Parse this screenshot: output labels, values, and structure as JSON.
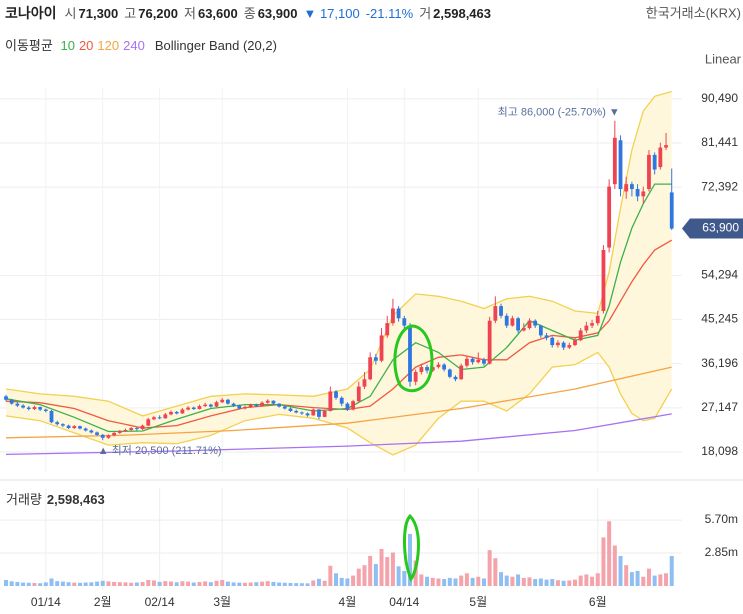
{
  "quote": {
    "name": "코나아이",
    "items": [
      {
        "label": "시",
        "value": "71,300"
      },
      {
        "label": "고",
        "value": "76,200"
      },
      {
        "label": "저",
        "value": "63,600"
      },
      {
        "label": "종",
        "value": "63,900"
      }
    ],
    "change": "▼ 17,100",
    "change_pct": "-21.11%",
    "volume_label": "거",
    "volume": "2,598,463",
    "exchange": "한국거래소(KRX)"
  },
  "chart_data": {
    "type": "candlestick",
    "scale": "Linear",
    "legend": {
      "title": "이동평균"
    },
    "categories": [
      null,
      null,
      null,
      null,
      null,
      null,
      null,
      "01/14",
      null,
      null,
      null,
      null,
      null,
      null,
      null,
      null,
      null,
      "2월",
      null,
      null,
      null,
      null,
      null,
      null,
      null,
      null,
      null,
      "02/14",
      null,
      null,
      null,
      null,
      null,
      null,
      null,
      null,
      null,
      null,
      "3월",
      null,
      null,
      null,
      null,
      null,
      null,
      null,
      null,
      null,
      null,
      null,
      null,
      null,
      null,
      null,
      null,
      null,
      null,
      null,
      null,
      null,
      "4월",
      null,
      null,
      null,
      null,
      null,
      null,
      null,
      null,
      null,
      "04/14",
      null,
      null,
      null,
      null,
      null,
      null,
      null,
      null,
      null,
      null,
      null,
      null,
      "5월",
      null,
      null,
      null,
      null,
      null,
      null,
      null,
      null,
      null,
      null,
      null,
      null,
      null,
      null,
      null,
      null,
      null,
      null,
      null,
      null,
      "6월",
      null,
      null,
      null,
      null,
      null,
      null,
      null,
      null,
      null,
      null,
      null,
      null,
      null
    ],
    "open": [
      29500,
      28800,
      28000,
      27600,
      27200,
      26900,
      27300,
      26800,
      26500,
      24200,
      23800,
      23500,
      23000,
      23400,
      22900,
      22500,
      22100,
      21600,
      21000,
      21500,
      22000,
      22400,
      22600,
      23000,
      22800,
      23500,
      24800,
      25200,
      25000,
      25800,
      26300,
      26000,
      26800,
      27200,
      26900,
      27500,
      27800,
      27400,
      28300,
      28800,
      28000,
      27600,
      27000,
      27300,
      27800,
      27500,
      28200,
      28600,
      28000,
      27400,
      27000,
      26500,
      26200,
      26000,
      25600,
      26800,
      25300,
      26500,
      30500,
      29200,
      28000,
      26800,
      28500,
      31500,
      33000,
      37500,
      36800,
      42000,
      44500,
      47500,
      45500,
      44000,
      32500,
      34500,
      35500,
      34800,
      35500,
      36000,
      35000,
      33500,
      33000,
      35800,
      37200,
      36500,
      37000,
      36200,
      45000,
      48000,
      46000,
      44000,
      45500,
      43000,
      43500,
      45000,
      44000,
      42000,
      41500,
      40000,
      40500,
      39500,
      40000,
      41000,
      43000,
      44000,
      44500,
      47000,
      60000,
      73000,
      82000,
      71500,
      73000,
      72000,
      70500,
      72000,
      79000,
      76500,
      80500,
      71300
    ],
    "high": [
      29800,
      29000,
      28300,
      27900,
      27500,
      27600,
      27400,
      27000,
      26700,
      24500,
      24000,
      23700,
      23600,
      23500,
      23100,
      22700,
      22300,
      21800,
      21700,
      22200,
      22600,
      22900,
      23200,
      23200,
      23700,
      25100,
      25500,
      25600,
      26100,
      26600,
      26500,
      27100,
      27500,
      27400,
      27800,
      28200,
      28000,
      28600,
      29200,
      29000,
      28200,
      27800,
      27600,
      28000,
      28000,
      28500,
      28900,
      28700,
      28100,
      27600,
      27200,
      26800,
      26400,
      26200,
      27000,
      26900,
      26800,
      31500,
      30800,
      29500,
      28300,
      28800,
      32500,
      34500,
      38500,
      38200,
      43500,
      46000,
      49500,
      48000,
      46000,
      44500,
      35000,
      36200,
      36000,
      36000,
      36500,
      36300,
      35200,
      33800,
      36200,
      37800,
      37500,
      38500,
      37400,
      45800,
      50000,
      48500,
      46500,
      46000,
      45800,
      44500,
      45500,
      45300,
      44200,
      42500,
      41800,
      41000,
      40800,
      40500,
      41500,
      43500,
      44800,
      45200,
      47000,
      60500,
      74000,
      86000,
      83000,
      74500,
      73500,
      73000,
      72500,
      80000,
      79500,
      81500,
      83500,
      76200
    ],
    "low": [
      28500,
      27800,
      27300,
      27000,
      26600,
      26700,
      26500,
      26200,
      24000,
      23500,
      23200,
      22800,
      22800,
      22700,
      22300,
      21900,
      21400,
      20500,
      20800,
      21300,
      21800,
      22200,
      22400,
      22500,
      22600,
      23400,
      24600,
      24800,
      24900,
      25600,
      25800,
      25900,
      26600,
      26700,
      26800,
      27300,
      27200,
      27300,
      28100,
      27800,
      27300,
      26800,
      26800,
      27100,
      27300,
      27400,
      28000,
      27800,
      27200,
      26800,
      26300,
      26000,
      25700,
      25300,
      25500,
      24800,
      25200,
      26400,
      28800,
      27500,
      26500,
      26600,
      28300,
      31000,
      32800,
      36000,
      36500,
      41500,
      44000,
      44800,
      43200,
      31500,
      31800,
      34000,
      34200,
      34500,
      35200,
      34600,
      33200,
      32600,
      32900,
      35400,
      36000,
      36200,
      35800,
      36000,
      44500,
      45500,
      43500,
      43800,
      42500,
      42800,
      43200,
      43500,
      41500,
      41000,
      39500,
      39500,
      39000,
      39200,
      39800,
      40800,
      42500,
      43500,
      44000,
      46500,
      59000,
      72000,
      70500,
      70000,
      70500,
      69500,
      69000,
      71500,
      75000,
      76000,
      80000,
      63600
    ],
    "close": [
      28800,
      28000,
      27600,
      27200,
      26900,
      27300,
      26800,
      26500,
      24200,
      23800,
      23500,
      23000,
      23400,
      22900,
      22500,
      22100,
      21600,
      21000,
      21500,
      22000,
      22400,
      22600,
      23000,
      22800,
      23500,
      24800,
      25200,
      25000,
      25800,
      26300,
      26000,
      26800,
      27200,
      26900,
      27500,
      27800,
      27400,
      28300,
      28800,
      28000,
      27600,
      27000,
      27300,
      27800,
      27500,
      28200,
      28600,
      28000,
      27400,
      27000,
      26500,
      26200,
      26000,
      25600,
      26800,
      25300,
      26500,
      30500,
      29200,
      28000,
      26800,
      28500,
      31500,
      33000,
      37500,
      36800,
      42000,
      44500,
      47500,
      45500,
      44000,
      32500,
      34500,
      35500,
      34800,
      35500,
      36000,
      35000,
      33500,
      33000,
      35800,
      37200,
      36500,
      37000,
      36200,
      45000,
      48000,
      46000,
      44000,
      45500,
      43000,
      43500,
      45000,
      44000,
      42000,
      41500,
      40000,
      40500,
      39500,
      40000,
      41000,
      43000,
      44000,
      44500,
      46000,
      59500,
      72500,
      82500,
      72000,
      73000,
      72000,
      70500,
      71500,
      79000,
      76000,
      80500,
      81000,
      63900
    ],
    "up_color": "#ee4352",
    "down_color": "#2f77e0",
    "ylim": [
      14400,
      92300
    ],
    "yticks": [
      {
        "value": 18098,
        "label": "18,098"
      },
      {
        "value": 27147,
        "label": "27,147"
      },
      {
        "value": 36196,
        "label": "36,196"
      },
      {
        "value": 45245,
        "label": "45,245"
      },
      {
        "value": 54294,
        "label": "54,294"
      },
      {
        "value": 72392,
        "label": "72,392"
      },
      {
        "value": 81441,
        "label": "81,441"
      },
      {
        "value": 90490,
        "label": "90,490"
      }
    ],
    "grid": true,
    "last_price": {
      "value": 63900,
      "label": "63,900",
      "color": "#40598c"
    },
    "annotations": [
      {
        "text": "최고 86,000 (-25.70%) ▼"
      },
      {
        "text": "▲ 최저 20,500 (211.71%)"
      }
    ],
    "lines": [
      {
        "name": "10",
        "color": "#3cb04a",
        "x": [
          0,
          6,
          12,
          18,
          24,
          30,
          36,
          42,
          48,
          54,
          60,
          64,
          68,
          72,
          76,
          80,
          84,
          88,
          92,
          96,
          100,
          104,
          106,
          108,
          110,
          112,
          114,
          117
        ],
        "values": [
          29000,
          27800,
          25200,
          22300,
          22400,
          24800,
          27000,
          27800,
          27800,
          26500,
          27000,
          29500,
          37000,
          40500,
          38500,
          35000,
          35500,
          39500,
          45000,
          43000,
          41000,
          42000,
          48000,
          57000,
          64000,
          69000,
          73000,
          73000
        ]
      },
      {
        "name": "20",
        "color": "#f0583f",
        "x": [
          0,
          6,
          12,
          18,
          24,
          30,
          36,
          42,
          48,
          54,
          60,
          64,
          68,
          72,
          76,
          80,
          84,
          88,
          92,
          96,
          100,
          104,
          106,
          108,
          110,
          112,
          114,
          117
        ],
        "values": [
          28500,
          28200,
          27000,
          24500,
          23000,
          23500,
          25500,
          27200,
          27800,
          27200,
          26800,
          27500,
          31000,
          35500,
          37500,
          38000,
          37000,
          37000,
          40500,
          42000,
          41500,
          42500,
          45000,
          49000,
          53000,
          56500,
          59500,
          61500
        ]
      },
      {
        "name": "120",
        "color": "#f5a445",
        "x": [
          0,
          20,
          40,
          60,
          80,
          100,
          117
        ],
        "values": [
          21000,
          21500,
          22500,
          24000,
          27000,
          31000,
          35500
        ]
      },
      {
        "name": "240",
        "color": "#a772f2",
        "x": [
          0,
          30,
          60,
          80,
          100,
          117
        ],
        "values": [
          17600,
          18300,
          19300,
          20300,
          22500,
          25900
        ]
      }
    ],
    "bollinger": {
      "name": "Bollinger Band (20,2)",
      "color": "#f4d04f",
      "fill": "#fff7dc",
      "x": [
        0,
        6,
        12,
        18,
        24,
        30,
        36,
        42,
        48,
        54,
        60,
        64,
        68,
        72,
        76,
        80,
        84,
        88,
        92,
        96,
        100,
        104,
        106,
        108,
        110,
        112,
        114,
        117
      ],
      "upper": [
        31000,
        30000,
        29500,
        28500,
        25500,
        27500,
        29500,
        30000,
        29800,
        29500,
        31000,
        35000,
        46000,
        50500,
        50000,
        49000,
        47500,
        49500,
        50000,
        49000,
        47000,
        46500,
        55000,
        68000,
        80000,
        88000,
        91000,
        92000
      ],
      "lower": [
        25500,
        24500,
        22000,
        19500,
        20000,
        19800,
        21500,
        24500,
        25800,
        25000,
        23000,
        20000,
        17500,
        19500,
        25000,
        28500,
        28500,
        26500,
        30000,
        35500,
        36000,
        38500,
        35500,
        30000,
        26000,
        24500,
        25000,
        31000
      ]
    },
    "volume": {
      "label": "거래량",
      "value_text": "2,598,463",
      "up_color": "#f4a3aa",
      "down_color": "#8fbff2",
      "ylim": [
        0,
        8300000
      ],
      "yticks": [
        {
          "value": 2850000,
          "label": "2.85m"
        },
        {
          "value": 5700000,
          "label": "5.70m"
        }
      ],
      "values": [
        520000,
        410000,
        350000,
        300000,
        280000,
        260000,
        240000,
        310000,
        650000,
        420000,
        380000,
        330000,
        290000,
        270000,
        300000,
        320000,
        380000,
        450000,
        400000,
        350000,
        330000,
        310000,
        280000,
        300000,
        340000,
        520000,
        480000,
        360000,
        420000,
        390000,
        320000,
        410000,
        380000,
        300000,
        350000,
        400000,
        330000,
        450000,
        520000,
        380000,
        310000,
        290000,
        270000,
        300000,
        330000,
        380000,
        420000,
        350000,
        300000,
        280000,
        260000,
        250000,
        240000,
        230000,
        480000,
        620000,
        450000,
        1750000,
        1100000,
        700000,
        650000,
        900000,
        1500000,
        1800000,
        2600000,
        1900000,
        3200000,
        2500000,
        2900000,
        1700000,
        1300000,
        4500000,
        2200000,
        1000000,
        800000,
        700000,
        650000,
        600000,
        700000,
        650000,
        900000,
        1100000,
        700000,
        800000,
        650000,
        3100000,
        2400000,
        1200000,
        900000,
        800000,
        1000000,
        700000,
        750000,
        600000,
        650000,
        550000,
        600000,
        500000,
        450000,
        480000,
        550000,
        900000,
        1000000,
        800000,
        1100000,
        4200000,
        5600000,
        3500000,
        2600000,
        1800000,
        1200000,
        1300000,
        800000,
        1500000,
        900000,
        1000000,
        1100000,
        2598463
      ]
    }
  }
}
